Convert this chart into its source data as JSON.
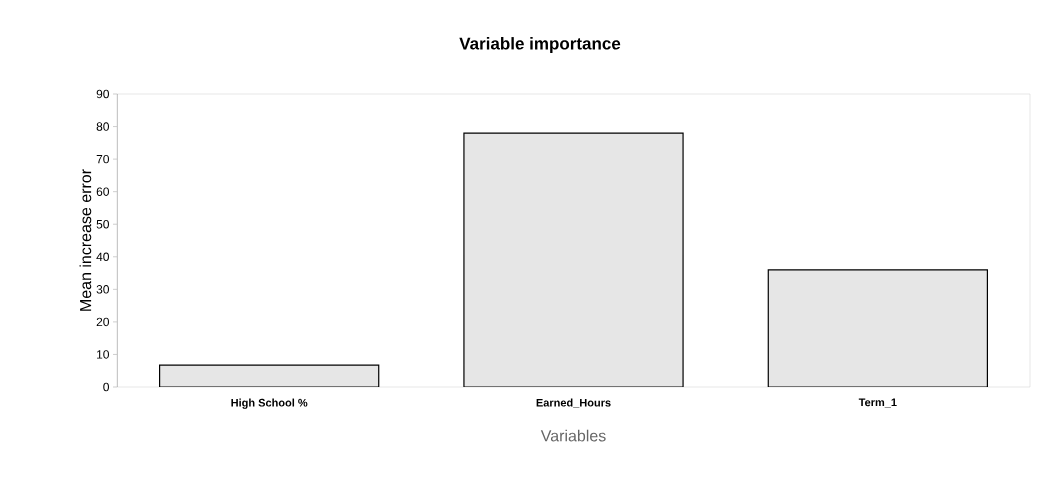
{
  "chart_data": {
    "type": "bar",
    "title": "Variable importance",
    "xlabel": "Variables",
    "ylabel": "Mean increase error",
    "categories": [
      "High School %",
      "Earned_Hours",
      "Term_1"
    ],
    "values": [
      6.7,
      78,
      36
    ],
    "color": "#e6e6e6",
    "ylim": [
      0,
      90
    ],
    "yticks": [
      0,
      10,
      20,
      30,
      40,
      50,
      60,
      70,
      80,
      90
    ],
    "grid": false
  }
}
